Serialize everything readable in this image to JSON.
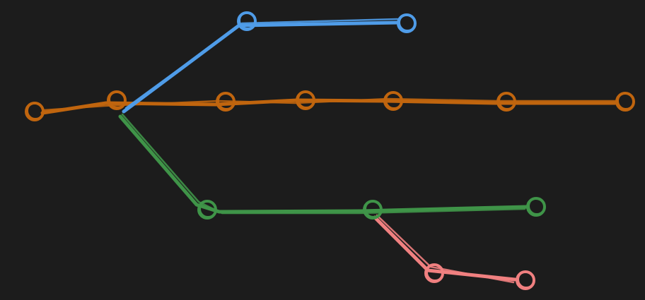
{
  "diagram": {
    "type": "git-branch-graph",
    "background_color": "#1c1c1c",
    "branches": [
      {
        "id": "main",
        "color": "#c0650e",
        "commit_count": 7
      },
      {
        "id": "blue-branch",
        "color": "#4f9ce8",
        "commit_count": 2,
        "forks_from": "main",
        "fork_commit_index": 1
      },
      {
        "id": "green-branch",
        "color": "#3f9448",
        "commit_count": 3,
        "forks_from": "main",
        "fork_commit_index": 1
      },
      {
        "id": "red-branch",
        "color": "#f08080",
        "commit_count": 2,
        "forks_from": "green-branch",
        "fork_commit_index": 1
      }
    ]
  }
}
